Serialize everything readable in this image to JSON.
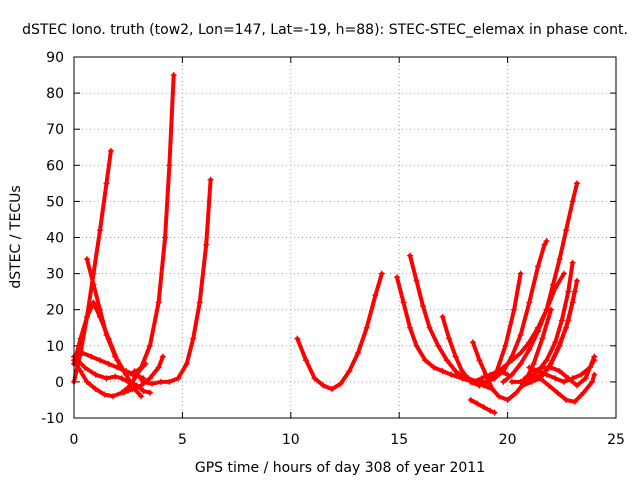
{
  "chart_data": {
    "type": "line",
    "title": "dSTEC Iono. truth (tow2, Lon=147, Lat=-19, h=88): STEC-STEC_elemax in phase cont.",
    "xlabel": "GPS time / hours of day 308 of year 2011",
    "ylabel": "dSTEC  / TECUs",
    "xlim": [
      0,
      25
    ],
    "ylim": [
      -10,
      90
    ],
    "xticks": [
      0,
      5,
      10,
      15,
      20,
      25
    ],
    "yticks": [
      -10,
      0,
      10,
      20,
      30,
      40,
      50,
      60,
      70,
      80,
      90
    ],
    "grid": true,
    "legend": "none",
    "color": "#ff0000",
    "marker": "plus",
    "series": [
      {
        "x": [
          0.0,
          0.3,
          0.6,
          0.9,
          1.2,
          1.5,
          1.7
        ],
        "y": [
          0,
          8,
          18,
          30,
          42,
          55,
          64
        ]
      },
      {
        "x": [
          0.6,
          0.9,
          1.2,
          1.5,
          1.9,
          2.3,
          2.7,
          3.1,
          3.5,
          3.9,
          4.2,
          4.4,
          4.6
        ],
        "y": [
          34,
          27,
          20,
          13,
          7,
          3,
          2,
          4,
          10,
          22,
          40,
          60,
          85
        ]
      },
      {
        "x": [
          0.0,
          0.3,
          0.6,
          0.9,
          1.2,
          1.6,
          2.0,
          2.4,
          2.8,
          3.1
        ],
        "y": [
          5,
          12,
          18,
          22,
          18,
          12,
          6,
          2,
          -2,
          -4
        ]
      },
      {
        "x": [
          0.0,
          0.4,
          0.8,
          1.2,
          1.6,
          2.0,
          2.4,
          2.8,
          3.2
        ],
        "y": [
          7,
          8,
          7,
          6,
          5,
          4,
          3,
          2,
          1
        ]
      },
      {
        "x": [
          0.0,
          0.3,
          0.6,
          1.0,
          1.4,
          1.8,
          2.2,
          2.6,
          3.0,
          3.3
        ],
        "y": [
          6,
          3,
          0,
          -2,
          -3.5,
          -4,
          -3,
          -1,
          3,
          5
        ]
      },
      {
        "x": [
          0.0,
          0.5,
          1.0,
          1.5,
          1.9,
          2.2,
          2.5,
          2.9,
          3.2,
          3.5
        ],
        "y": [
          7,
          4,
          2,
          1,
          1.5,
          1,
          0,
          -1,
          -2.5,
          -3
        ]
      },
      {
        "x": [
          2.3,
          2.7,
          3.1,
          3.5,
          3.9,
          4.1
        ],
        "y": [
          -3,
          -2,
          -1,
          1,
          4,
          7
        ]
      },
      {
        "x": [
          2.8,
          3.2,
          3.6,
          4.0,
          4.4,
          4.8,
          5.2,
          5.5,
          5.8,
          6.1,
          6.3
        ],
        "y": [
          3,
          0,
          -0.5,
          0,
          0,
          1,
          5,
          12,
          22,
          38,
          56
        ]
      },
      {
        "x": [
          10.3,
          10.7,
          11.1,
          11.5,
          11.9,
          12.3,
          12.7,
          13.1,
          13.5,
          13.9,
          14.2
        ],
        "y": [
          12,
          6,
          1,
          -1,
          -2,
          -0.5,
          3,
          8,
          15,
          24,
          30
        ]
      },
      {
        "x": [
          14.9,
          15.2,
          15.5,
          15.8,
          16.2,
          16.6,
          17.0,
          17.4,
          17.9,
          18.4,
          18.9,
          19.3
        ],
        "y": [
          29,
          22,
          15,
          10,
          6,
          4,
          3,
          2,
          1,
          0,
          -1,
          -2
        ]
      },
      {
        "x": [
          15.5,
          15.8,
          16.1,
          16.4,
          16.8,
          17.2,
          17.6,
          18.0,
          18.4,
          18.8,
          19.2,
          19.6,
          20.0
        ],
        "y": [
          35,
          28,
          21,
          15,
          10,
          6,
          3,
          1,
          0,
          1,
          2,
          3,
          2
        ]
      },
      {
        "x": [
          17.0,
          17.3,
          17.6,
          17.9,
          18.3,
          18.7,
          19.1,
          19.5,
          19.9,
          20.3,
          20.6
        ],
        "y": [
          18,
          12,
          7,
          3,
          0,
          -1,
          0,
          3,
          10,
          20,
          30
        ]
      },
      {
        "x": [
          18.4,
          18.7,
          19.0,
          19.3,
          19.6,
          20.0,
          20.4,
          20.8,
          21.2,
          21.6,
          22.0
        ],
        "y": [
          11,
          6,
          2,
          -2,
          -4,
          -5,
          -3,
          0,
          5,
          12,
          20
        ]
      },
      {
        "x": [
          18.3,
          18.6,
          18.9,
          19.2,
          19.4
        ],
        "y": [
          -5,
          -6,
          -7,
          -8,
          -8.5
        ]
      },
      {
        "x": [
          18.2,
          18.6,
          19.0,
          19.4,
          19.8,
          20.2,
          20.6,
          21.0,
          21.4,
          21.7,
          21.8
        ],
        "y": [
          1,
          0,
          0,
          1,
          3,
          7,
          13,
          22,
          32,
          38,
          39
        ]
      },
      {
        "x": [
          19.4,
          19.8,
          20.2,
          20.6,
          21.0,
          21.4,
          21.8,
          22.2,
          22.6
        ],
        "y": [
          2,
          4,
          6,
          8,
          11,
          15,
          20,
          26,
          30
        ]
      },
      {
        "x": [
          19.8,
          20.2,
          20.6,
          21.0,
          21.4,
          21.8,
          22.1,
          22.4,
          22.7,
          23.0,
          23.2
        ],
        "y": [
          0,
          2,
          5,
          9,
          14,
          20,
          27,
          34,
          42,
          50,
          55
        ]
      },
      {
        "x": [
          20.2,
          20.6,
          21.0,
          21.4,
          21.8,
          22.2,
          22.5,
          22.8,
          23.0
        ],
        "y": [
          0,
          0,
          1,
          3,
          6,
          11,
          17,
          25,
          33
        ]
      },
      {
        "x": [
          20.7,
          21.1,
          21.5,
          21.9,
          22.3,
          22.7,
          23.0,
          23.2
        ],
        "y": [
          -1,
          0,
          1,
          4,
          9,
          15,
          22,
          28
        ]
      },
      {
        "x": [
          20.8,
          21.2,
          21.6,
          22.0,
          22.4,
          22.8,
          23.1
        ],
        "y": [
          1,
          1,
          2,
          5,
          10,
          17,
          25
        ]
      },
      {
        "x": [
          21.1,
          21.5,
          21.9,
          22.3,
          22.7,
          23.1,
          23.5,
          23.9,
          24.0
        ],
        "y": [
          2,
          1,
          -1,
          -3,
          -5,
          -5.5,
          -3,
          0,
          2
        ]
      },
      {
        "x": [
          21.2,
          21.6,
          22.0,
          22.4,
          22.8,
          23.2,
          23.6,
          24.0
        ],
        "y": [
          3,
          4,
          4,
          3,
          1,
          -1,
          1,
          7
        ]
      },
      {
        "x": [
          21.0,
          21.4,
          21.8,
          22.2,
          22.6,
          23.0,
          23.4,
          23.8,
          24.0
        ],
        "y": [
          4,
          3,
          2,
          1,
          0,
          1,
          2,
          4,
          6
        ]
      }
    ]
  }
}
